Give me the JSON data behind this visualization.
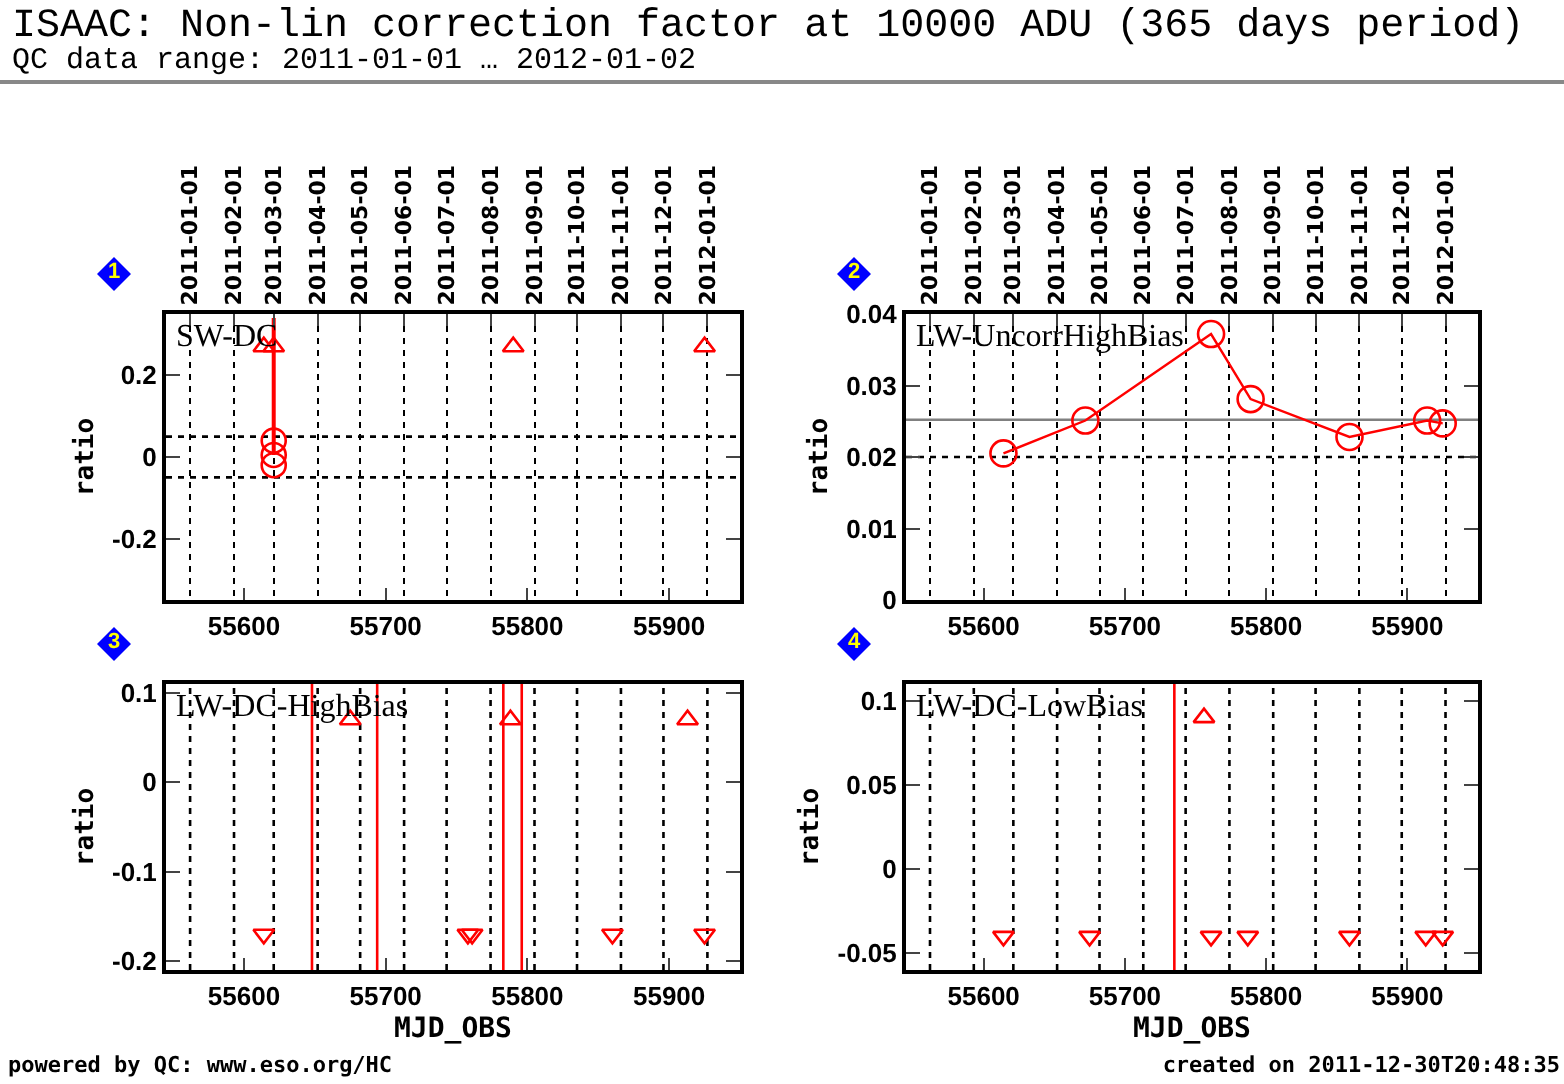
{
  "chart_data": [
    {
      "type": "scatter",
      "title": "ISAAC: Non-lin correction factor at 10000 ADU (365 days period)",
      "subtitle": "QC data range: 2011-01-01 … 2012-01-02",
      "ylabel": "ratio",
      "annotations": [
        "1",
        "SW-DC"
      ],
      "xlim": [
        55545,
        55950
      ],
      "xticks": [
        55600,
        55700,
        55800,
        55900
      ],
      "x2lim": [
        "2010-12-15",
        "2012-01-24"
      ],
      "x2ticks": [
        "2011-01-01",
        "2011-02-01",
        "2011-03-01",
        "2011-04-01",
        "2011-05-01",
        "2011-06-01",
        "2011-07-01",
        "2011-08-01",
        "2011-09-01",
        "2011-10-01",
        "2011-11-01",
        "2011-12-01",
        "2012-01-01"
      ],
      "ylim": [
        -0.35,
        0.35
      ],
      "yticks": [
        -0.2,
        0,
        0.2
      ],
      "grid": "x",
      "ref_lines": [
        {
          "axis": "y",
          "value": 0.05,
          "color": "#000000",
          "line_style": "dotted"
        },
        {
          "axis": "y",
          "value": -0.05,
          "color": "#000000",
          "line_style": "dotted"
        }
      ],
      "series": [
        {
          "marker": "circle",
          "color": "#ff0000",
          "x": [
            55621,
            55621,
            55621
          ],
          "values": [
            0.04,
            0.005,
            -0.02
          ],
          "errors": [
            null,
            [
              0.005,
              0.34
            ],
            null
          ]
        },
        {
          "marker": "triangle",
          "color": "#ff0000",
          "x": [
            55614,
            55621,
            55790,
            55925
          ],
          "values": [
            0.27,
            0.27,
            0.27,
            0.27
          ]
        }
      ]
    },
    {
      "type": "line",
      "ylabel": "ratio",
      "annotations": [
        "2",
        "LW-UncorrHighBias"
      ],
      "xlim": [
        55545,
        55950
      ],
      "xticks": [
        55600,
        55700,
        55800,
        55900
      ],
      "x2lim": [
        "2010-12-15",
        "2012-01-24"
      ],
      "x2ticks": [
        "2011-01-01",
        "2011-02-01",
        "2011-03-01",
        "2011-04-01",
        "2011-05-01",
        "2011-06-01",
        "2011-07-01",
        "2011-08-01",
        "2011-09-01",
        "2011-10-01",
        "2011-11-01",
        "2011-12-01",
        "2012-01-01"
      ],
      "ylim": [
        0,
        0.04
      ],
      "yticks": [
        0,
        0.01,
        0.02,
        0.03,
        0.04
      ],
      "grid": "x",
      "ref_lines": [
        {
          "axis": "y",
          "value": 0.0252,
          "color": "#808080",
          "line_style": "solid"
        },
        {
          "axis": "y",
          "value": 0.02,
          "color": "#000000",
          "line_style": "dotted"
        }
      ],
      "series": [
        {
          "marker": "circle",
          "color": "#ff0000",
          "x": [
            55614,
            55672,
            55761,
            55789,
            55859,
            55914,
            55925
          ],
          "values": [
            0.0205,
            0.0251,
            0.0372,
            0.0281,
            0.0228,
            0.0251,
            0.0247
          ]
        }
      ]
    },
    {
      "type": "scatter",
      "xlabel": "MJD_OBS",
      "ylabel": "ratio",
      "annotations": [
        "3",
        "LW-DC-HighBias",
        "powered by QC: www.eso.org/HC"
      ],
      "xlim": [
        55545,
        55950
      ],
      "xticks": [
        55600,
        55700,
        55800,
        55900
      ],
      "ylim": [
        -0.21,
        0.11
      ],
      "yticks": [
        -0.2,
        -0.1,
        0,
        0.1
      ],
      "ref_lines": [
        {
          "axis": "x",
          "value": 55562,
          "color": "#000000",
          "line_style": "dotted"
        },
        {
          "axis": "x",
          "value": 55593,
          "color": "#000000",
          "line_style": "dotted"
        },
        {
          "axis": "x",
          "value": 55621,
          "color": "#000000",
          "line_style": "dotted"
        },
        {
          "axis": "x",
          "value": 55652,
          "color": "#000000",
          "line_style": "dotted"
        },
        {
          "axis": "x",
          "value": 55682,
          "color": "#000000",
          "line_style": "dotted"
        },
        {
          "axis": "x",
          "value": 55713,
          "color": "#000000",
          "line_style": "dotted"
        },
        {
          "axis": "x",
          "value": 55743,
          "color": "#000000",
          "line_style": "dotted"
        },
        {
          "axis": "x",
          "value": 55774,
          "color": "#000000",
          "line_style": "dotted"
        },
        {
          "axis": "x",
          "value": 55805,
          "color": "#000000",
          "line_style": "dotted"
        },
        {
          "axis": "x",
          "value": 55835,
          "color": "#000000",
          "line_style": "dotted"
        },
        {
          "axis": "x",
          "value": 55866,
          "color": "#000000",
          "line_style": "dotted"
        },
        {
          "axis": "x",
          "value": 55896,
          "color": "#000000",
          "line_style": "dotted"
        },
        {
          "axis": "x",
          "value": 55927,
          "color": "#000000",
          "line_style": "dotted"
        },
        {
          "axis": "x",
          "value": 55648,
          "color": "#ff0000",
          "line_style": "solid"
        },
        {
          "axis": "x",
          "value": 55694,
          "color": "#ff0000",
          "line_style": "solid"
        },
        {
          "axis": "x",
          "value": 55783,
          "color": "#ff0000",
          "line_style": "solid"
        },
        {
          "axis": "x",
          "value": 55796,
          "color": "#ff0000",
          "line_style": "solid"
        }
      ],
      "series": [
        {
          "marker": "triangle",
          "color": "#ff0000",
          "x": [
            55675,
            55788,
            55913,
            55614,
            55758,
            55761,
            55860,
            55925
          ],
          "values": [
            0.07,
            0.07,
            0.07,
            -0.17,
            -0.17,
            -0.17,
            -0.17,
            -0.17
          ]
        }
      ]
    },
    {
      "type": "scatter",
      "xlabel": "MJD_OBS",
      "ylabel": "ratio",
      "annotations": [
        "4",
        "LW-DC-LowBias",
        "created on 2011-12-30T20:48:35"
      ],
      "xlim": [
        55545,
        55950
      ],
      "xticks": [
        55600,
        55700,
        55800,
        55900
      ],
      "ylim": [
        -0.06,
        0.11
      ],
      "yticks": [
        -0.05,
        0,
        0.05,
        0.1
      ],
      "ref_lines": [
        {
          "axis": "x",
          "value": 55562,
          "color": "#000000",
          "line_style": "dotted"
        },
        {
          "axis": "x",
          "value": 55593,
          "color": "#000000",
          "line_style": "dotted"
        },
        {
          "axis": "x",
          "value": 55621,
          "color": "#000000",
          "line_style": "dotted"
        },
        {
          "axis": "x",
          "value": 55652,
          "color": "#000000",
          "line_style": "dotted"
        },
        {
          "axis": "x",
          "value": 55682,
          "color": "#000000",
          "line_style": "dotted"
        },
        {
          "axis": "x",
          "value": 55713,
          "color": "#000000",
          "line_style": "dotted"
        },
        {
          "axis": "x",
          "value": 55743,
          "color": "#000000",
          "line_style": "dotted"
        },
        {
          "axis": "x",
          "value": 55774,
          "color": "#000000",
          "line_style": "dotted"
        },
        {
          "axis": "x",
          "value": 55805,
          "color": "#000000",
          "line_style": "dotted"
        },
        {
          "axis": "x",
          "value": 55835,
          "color": "#000000",
          "line_style": "dotted"
        },
        {
          "axis": "x",
          "value": 55866,
          "color": "#000000",
          "line_style": "dotted"
        },
        {
          "axis": "x",
          "value": 55896,
          "color": "#000000",
          "line_style": "dotted"
        },
        {
          "axis": "x",
          "value": 55927,
          "color": "#000000",
          "line_style": "dotted"
        },
        {
          "axis": "x",
          "value": 55735,
          "color": "#ff0000",
          "line_style": "solid"
        }
      ],
      "series": [
        {
          "marker": "triangle",
          "color": "#ff0000",
          "x": [
            55756,
            55614,
            55675,
            55761,
            55787,
            55859,
            55913,
            55925
          ],
          "values": [
            0.09,
            -0.04,
            -0.04,
            -0.04,
            -0.04,
            -0.04,
            -0.04,
            -0.04
          ]
        }
      ]
    }
  ]
}
